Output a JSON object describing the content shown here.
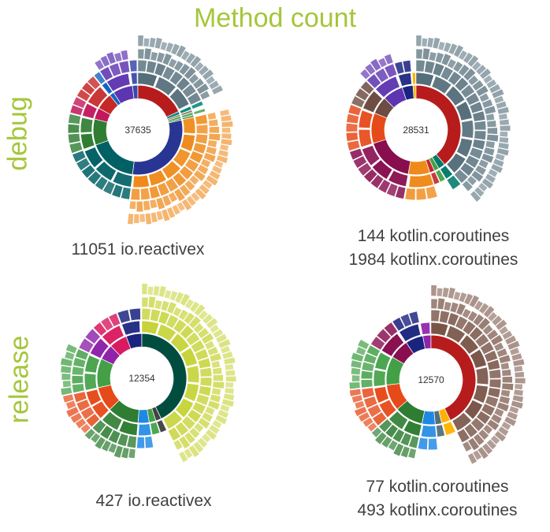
{
  "title": "Method count",
  "row_labels": [
    "debug",
    "release"
  ],
  "chart_data": [
    {
      "type": "sunburst",
      "row": "debug",
      "center_value": "37635",
      "caption_lines": [
        "11051 io.reactivex"
      ],
      "segments": [
        {
          "color": "#b71c1c",
          "value": 6600,
          "depth": 4,
          "outer_color": "#546e7a"
        },
        {
          "color": "#00897b",
          "value": 400,
          "depth": 2
        },
        {
          "color": "#8d6e63",
          "value": 250,
          "depth": 1
        },
        {
          "color": "#43a047",
          "value": 300,
          "depth": 2
        },
        {
          "color": "#2e7d32",
          "value": 200,
          "depth": 1
        },
        {
          "color": "#283593",
          "value": 11051,
          "depth": 4,
          "outer_color": "#ef8a1a"
        },
        {
          "color": "#006064",
          "value": 6400,
          "depth": 2
        },
        {
          "color": "#2e7d32",
          "value": 3400,
          "depth": 2
        },
        {
          "color": "#c2185b",
          "value": 1500,
          "depth": 2
        },
        {
          "color": "#c62828",
          "value": 2200,
          "depth": 2
        },
        {
          "color": "#1565c0",
          "value": 600,
          "depth": 2
        },
        {
          "color": "#5e35b1",
          "value": 2600,
          "depth": 3
        },
        {
          "color": "#3949ab",
          "value": 700,
          "depth": 2
        }
      ]
    },
    {
      "type": "sunburst",
      "row": "debug",
      "center_value": "28531",
      "caption_lines": [
        "144 kotlin.coroutines",
        "1984 kotlinx.coroutines"
      ],
      "segments": [
        {
          "color": "#b71c1c",
          "value": 11000,
          "depth": 4,
          "outer_color": "#546e7a"
        },
        {
          "color": "#00796b",
          "value": 700,
          "depth": 2
        },
        {
          "color": "#43a047",
          "value": 500,
          "depth": 1
        },
        {
          "color": "#c62828",
          "value": 500,
          "depth": 1
        },
        {
          "color": "#ef8a1a",
          "value": 2200,
          "depth": 2
        },
        {
          "color": "#880e4f",
          "value": 4900,
          "depth": 2
        },
        {
          "color": "#e64a19",
          "value": 3100,
          "depth": 2
        },
        {
          "color": "#6d4c41",
          "value": 1800,
          "depth": 2
        },
        {
          "color": "#5e35b1",
          "value": 2100,
          "depth": 3
        },
        {
          "color": "#1a237e",
          "value": 1100,
          "depth": 2
        },
        {
          "color": "#ffb300",
          "value": 300,
          "depth": 1
        }
      ]
    },
    {
      "type": "sunburst",
      "row": "release",
      "center_value": "12354",
      "caption_lines": [
        "427 io.reactivex"
      ],
      "segments": [
        {
          "color": "#004d40",
          "value": 5300,
          "depth": 4,
          "outer_color": "#c6d43a"
        },
        {
          "color": "#424242",
          "value": 250,
          "depth": 1
        },
        {
          "color": "#43a047",
          "value": 300,
          "depth": 1
        },
        {
          "color": "#1e88e5",
          "value": 500,
          "depth": 2
        },
        {
          "color": "#2e7d32",
          "value": 1400,
          "depth": 3
        },
        {
          "color": "#e64a19",
          "value": 1100,
          "depth": 3
        },
        {
          "color": "#43a047",
          "value": 1300,
          "depth": 3
        },
        {
          "color": "#8e24aa",
          "value": 700,
          "depth": 2
        },
        {
          "color": "#d81b60",
          "value": 800,
          "depth": 2
        },
        {
          "color": "#1a237e",
          "value": 700,
          "depth": 2
        }
      ]
    },
    {
      "type": "sunburst",
      "row": "release",
      "center_value": "12570",
      "caption_lines": [
        "77 kotlin.coroutines",
        "493 kotlinx.coroutines"
      ],
      "segments": [
        {
          "color": "#b71c1c",
          "value": 5400,
          "depth": 4,
          "outer_color": "#795548"
        },
        {
          "color": "#ffb300",
          "value": 400,
          "depth": 1
        },
        {
          "color": "#546e7a",
          "value": 300,
          "depth": 1
        },
        {
          "color": "#1e88e5",
          "value": 600,
          "depth": 2
        },
        {
          "color": "#2e7d32",
          "value": 1300,
          "depth": 3
        },
        {
          "color": "#e64a19",
          "value": 1200,
          "depth": 3
        },
        {
          "color": "#43a047",
          "value": 1300,
          "depth": 3
        },
        {
          "color": "#880e4f",
          "value": 900,
          "depth": 2
        },
        {
          "color": "#1a237e",
          "value": 800,
          "depth": 2
        },
        {
          "color": "#8e24aa",
          "value": 370,
          "depth": 1
        }
      ]
    }
  ]
}
